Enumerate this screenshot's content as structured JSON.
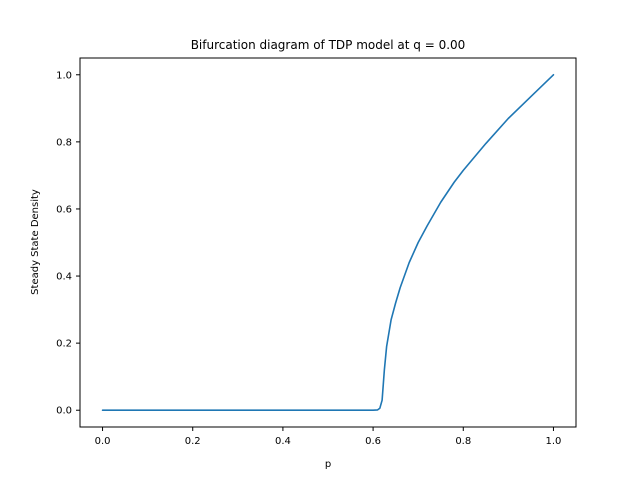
{
  "chart_data": {
    "type": "line",
    "title": "Bifurcation diagram of TDP model at q = 0.00",
    "xlabel": "p",
    "ylabel": "Steady State Density",
    "xlim": [
      -0.05,
      1.05
    ],
    "ylim": [
      -0.05,
      1.05
    ],
    "xticks": [
      0.0,
      0.2,
      0.4,
      0.6,
      0.8,
      1.0
    ],
    "xtick_labels": [
      "0.0",
      "0.2",
      "0.4",
      "0.6",
      "0.8",
      "1.0"
    ],
    "yticks": [
      0.0,
      0.2,
      0.4,
      0.6,
      0.8,
      1.0
    ],
    "ytick_labels": [
      "0.0",
      "0.2",
      "0.4",
      "0.6",
      "0.8",
      "1.0"
    ],
    "grid": false,
    "colors": {
      "line": "#1f77b4",
      "axes": "#000000",
      "background": "#ffffff"
    },
    "series": [
      {
        "x": [
          0.0,
          0.1,
          0.2,
          0.3,
          0.4,
          0.5,
          0.55,
          0.6,
          0.61,
          0.615,
          0.62,
          0.625,
          0.63,
          0.64,
          0.65,
          0.66,
          0.68,
          0.7,
          0.72,
          0.75,
          0.78,
          0.8,
          0.85,
          0.9,
          0.95,
          1.0
        ],
        "values": [
          0.0,
          0.0,
          0.0,
          0.0,
          0.0,
          0.0,
          0.0,
          0.0,
          0.001,
          0.006,
          0.03,
          0.12,
          0.19,
          0.27,
          0.32,
          0.365,
          0.44,
          0.5,
          0.55,
          0.62,
          0.68,
          0.715,
          0.795,
          0.87,
          0.935,
          1.0
        ]
      }
    ]
  }
}
